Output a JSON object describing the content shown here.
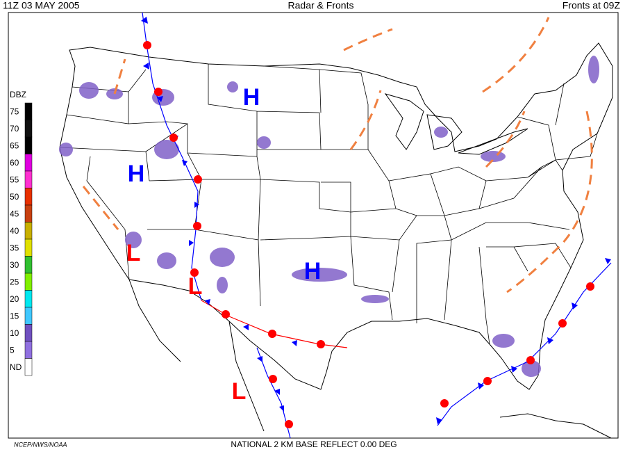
{
  "header": {
    "left": "11Z  03 MAY  2005",
    "center": "Radar & Fronts",
    "right": "Fronts at 09Z"
  },
  "legend": {
    "title": "DBZ",
    "levels": [
      {
        "label": "75",
        "color": "#000000"
      },
      {
        "label": "70",
        "color": "#101010"
      },
      {
        "label": "65",
        "color": "#000000"
      },
      {
        "label": "60",
        "color": "#e000e0"
      },
      {
        "label": "55",
        "color": "#ff30d0"
      },
      {
        "label": "50",
        "color": "#e83000"
      },
      {
        "label": "45",
        "color": "#c84010"
      },
      {
        "label": "40",
        "color": "#c8b000"
      },
      {
        "label": "35",
        "color": "#e0e000"
      },
      {
        "label": "30",
        "color": "#30c030"
      },
      {
        "label": "25",
        "color": "#80f000"
      },
      {
        "label": "20",
        "color": "#00e8f0"
      },
      {
        "label": "15",
        "color": "#40c8ff"
      },
      {
        "label": "10",
        "color": "#7050c0"
      },
      {
        "label": "5",
        "color": "#9070e0"
      },
      {
        "label": "ND",
        "color": "#ffffff"
      }
    ]
  },
  "pressure_centers": [
    {
      "label": "H"
    },
    {
      "label": "H"
    },
    {
      "label": "H"
    },
    {
      "label": "L"
    },
    {
      "label": "L"
    },
    {
      "label": "L"
    }
  ],
  "footer": {
    "credit": "NCEP/NWS/NOAA",
    "product": "NATIONAL 2 KM BASE REFLECT 0.00 DEG"
  }
}
